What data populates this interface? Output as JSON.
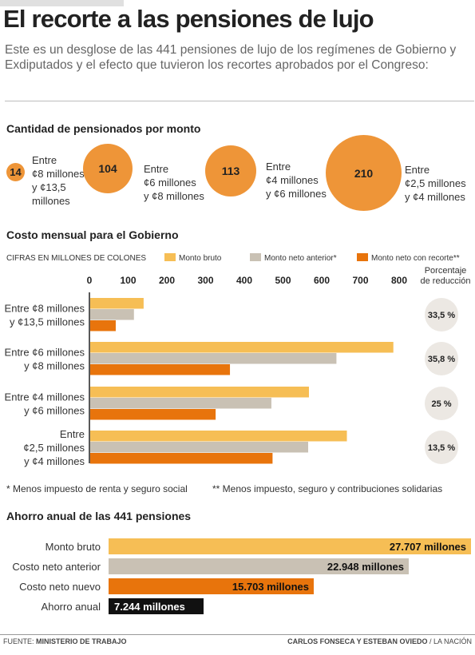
{
  "header": {
    "title": "El recorte a las pensiones de lujo",
    "subtitle": "Este es un desglose de las 441 pensiones de lujo de los regímenes de Gobierno y Exdiputados y el efecto que tuvieron los recortes aprobados por el Congreso:"
  },
  "section1": {
    "title": "Cantidad de pensionados por monto",
    "items": [
      {
        "count": "14",
        "label": [
          "Entre",
          "¢8 millones",
          "y ¢13,5",
          "millones"
        ]
      },
      {
        "count": "104",
        "label": [
          "Entre",
          "¢6 millones",
          "y ¢8 millones"
        ]
      },
      {
        "count": "113",
        "label": [
          "Entre",
          "¢4 millones",
          "y ¢6 millones"
        ]
      },
      {
        "count": "210",
        "label": [
          "Entre",
          "¢2,5 millones",
          "y ¢4 millones"
        ]
      }
    ]
  },
  "section2": {
    "title": "Costo mensual para el Gobierno",
    "unit_label": "CIFRAS EN MILLONES DE COLONES",
    "reduction_header": [
      "Porcentaje",
      "de reducción"
    ],
    "footnote1": "* Menos impuesto de renta y seguro social",
    "footnote2": "** Menos impuesto, seguro y contribuciones solidarias"
  },
  "section3": {
    "title": "Ahorro anual de las 441 pensiones",
    "rows": [
      {
        "label": "Monto bruto",
        "value_text": "27.707 millones",
        "value": 27707,
        "color": "#f6be55"
      },
      {
        "label": "Costo neto anterior",
        "value_text": "22.948 millones",
        "value": 22948,
        "color": "#c9c1b4"
      },
      {
        "label": "Costo neto nuevo",
        "value_text": "15.703 millones",
        "value": 15703,
        "color": "#e8740c"
      },
      {
        "label": "Ahorro anual",
        "value_text": "7.244 millones",
        "value": 7244,
        "color": "#111111"
      }
    ]
  },
  "footer": {
    "source_label": "FUENTE:",
    "source": "MINISTERIO DE TRABAJO",
    "credits": "CARLOS FONSECA Y ESTEBAN OVIEDO",
    "outlet": "/ LA NACIÓN"
  },
  "chart_data": {
    "type": "bar",
    "orientation": "horizontal",
    "categories": [
      [
        "Entre ¢8 millones",
        "y ¢13,5 millones"
      ],
      [
        "Entre ¢6 millones",
        "y ¢8 millones"
      ],
      [
        "Entre ¢4 millones",
        "y ¢6 millones"
      ],
      [
        "Entre",
        "¢2,5 millones",
        "y ¢4 millones"
      ]
    ],
    "series": [
      {
        "name": "Monto bruto",
        "color": "#f6be55",
        "values": [
          140,
          785,
          567,
          665
        ]
      },
      {
        "name": "Monto neto anterior*",
        "color": "#c9c1b4",
        "values": [
          115,
          638,
          470,
          565
        ]
      },
      {
        "name": "Monto neto con recorte**",
        "color": "#e8740c",
        "values": [
          68,
          363,
          326,
          473
        ]
      }
    ],
    "reduction": [
      "33,5 %",
      "35,8 %",
      "25 %",
      "13,5 %"
    ],
    "xticks": [
      0,
      100,
      200,
      300,
      400,
      500,
      600,
      700,
      800
    ],
    "xlim": [
      0,
      800
    ],
    "legend_position": "top",
    "grid": false
  }
}
